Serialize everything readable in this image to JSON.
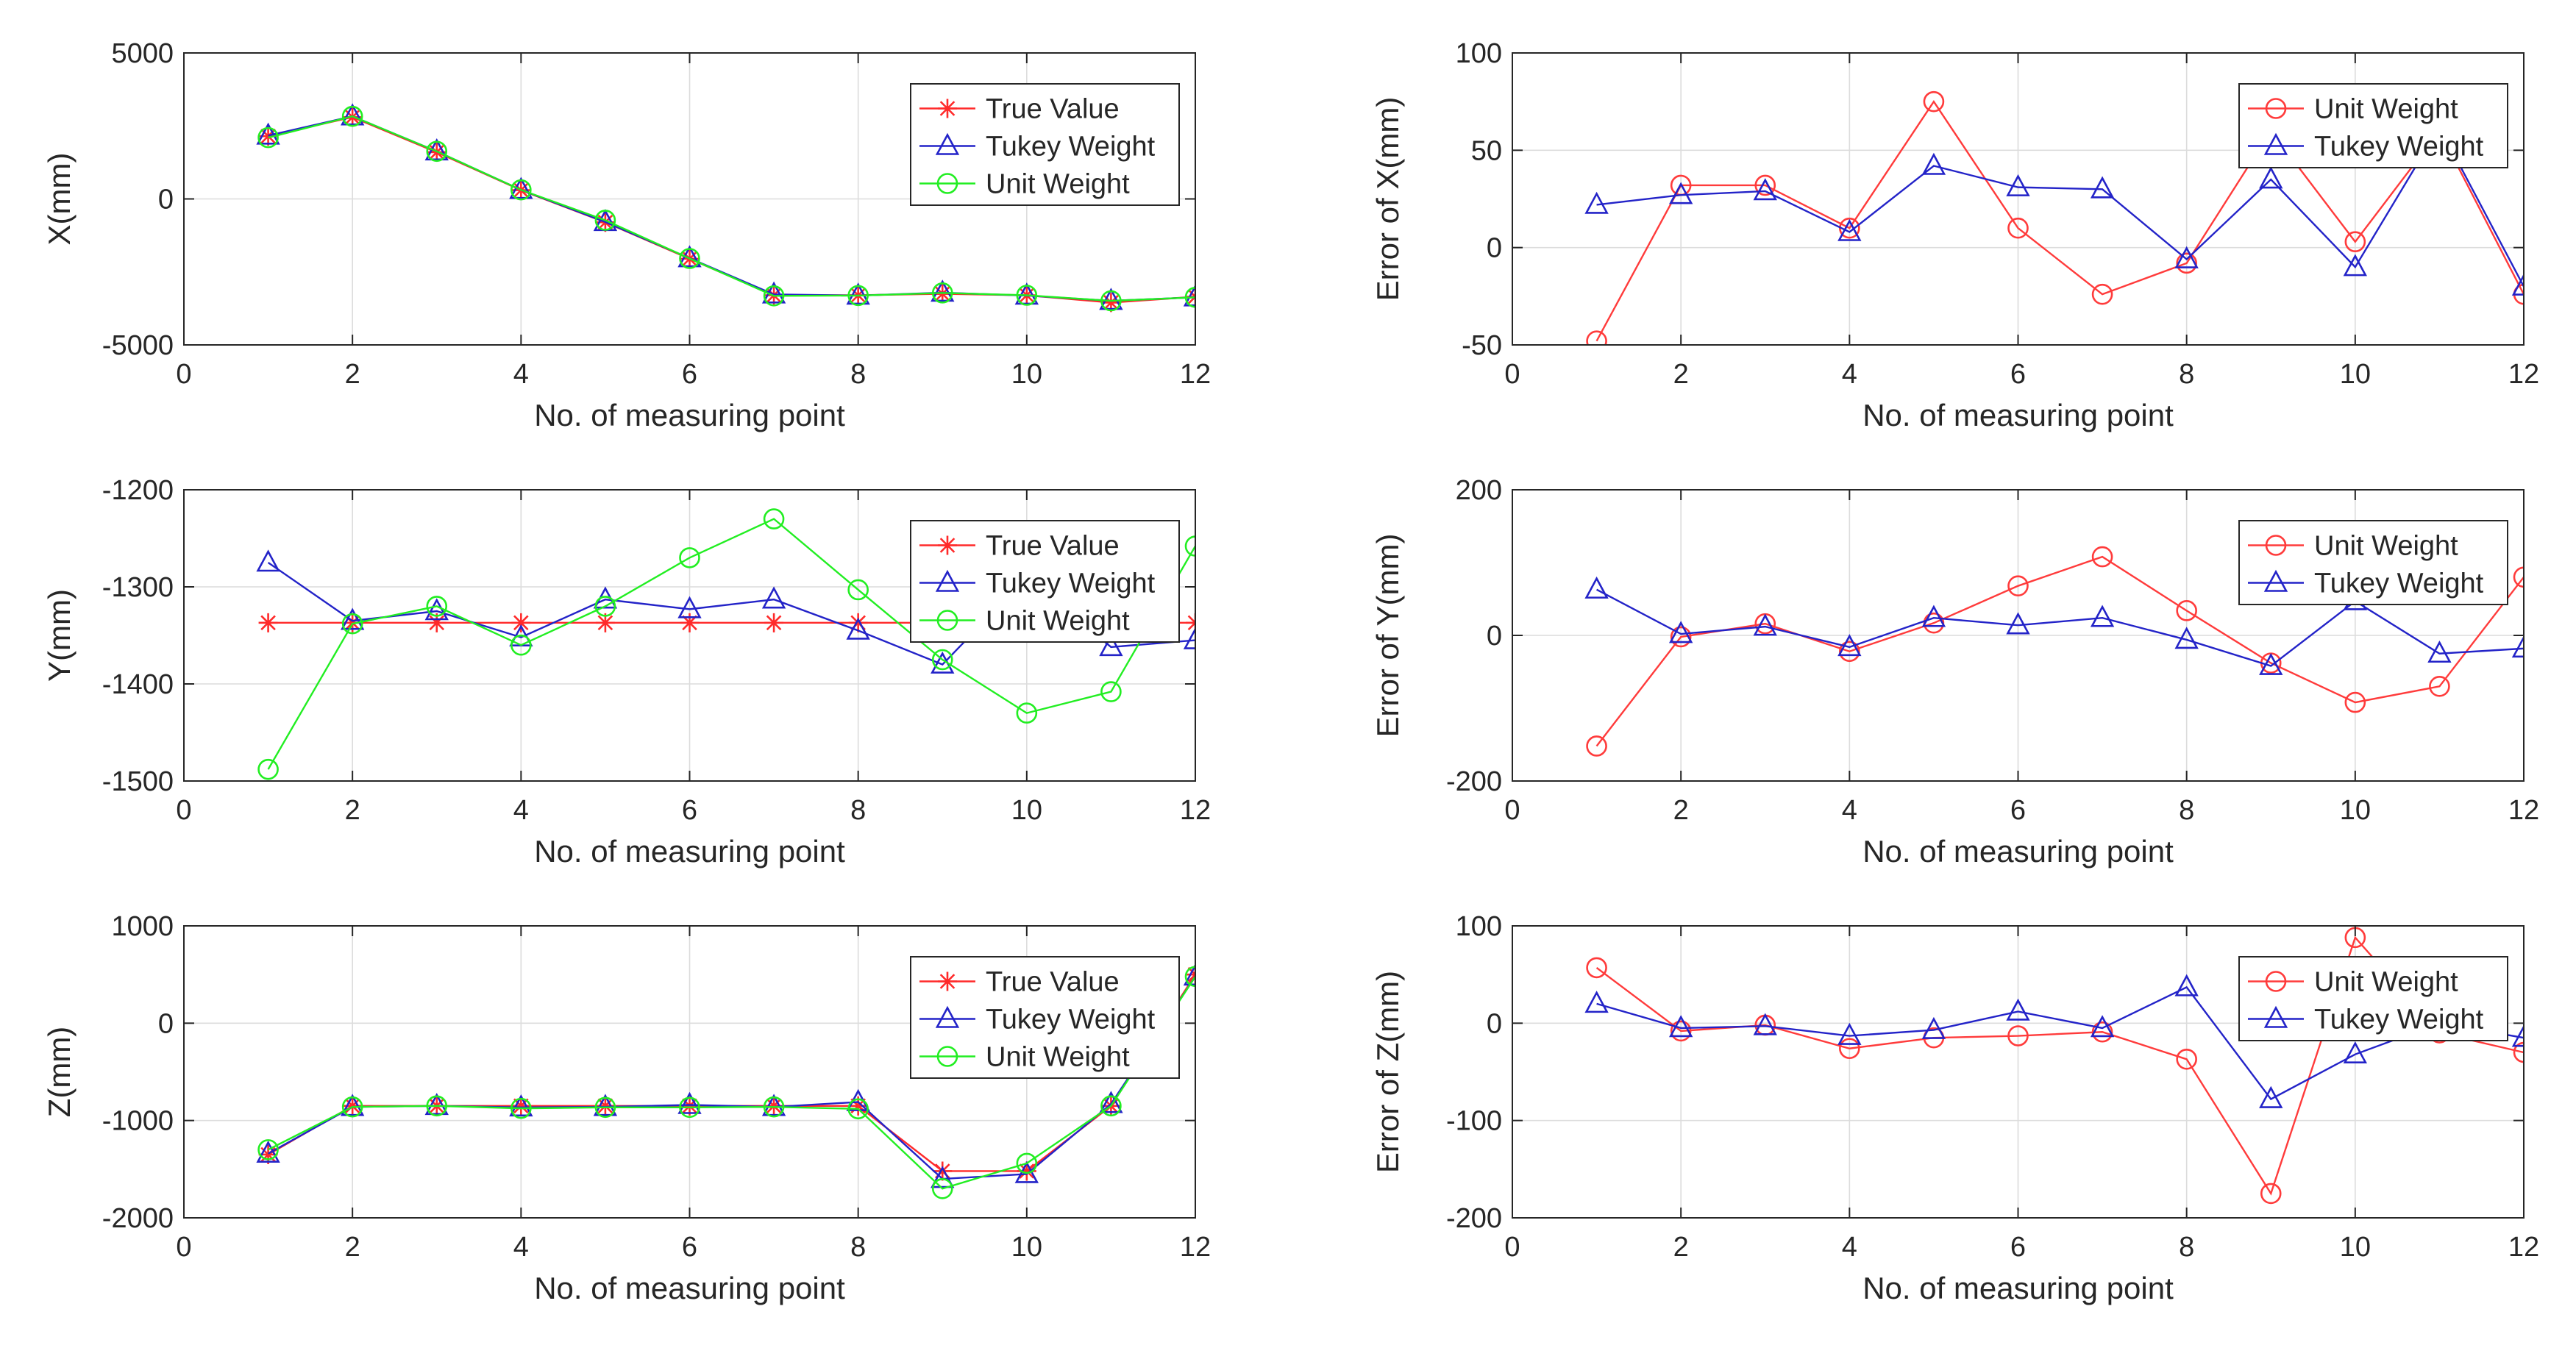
{
  "figure": {
    "background": "#ffffff",
    "axis_color": "#262626",
    "grid_color": "#dcdcdc"
  },
  "series_styles": {
    "True Value": {
      "color": "#ff2a2a",
      "marker": "star"
    },
    "Tukey Weight": {
      "color": "#2323c8",
      "marker": "triangle"
    },
    "Unit Weight": {
      "color": "#22ee22",
      "marker": "circle"
    },
    "Unit Weight (error)": {
      "color": "#ff3b3b",
      "marker": "circle"
    }
  },
  "chart_data": [
    {
      "type": "line",
      "id": "x-coordinate",
      "title": "",
      "xlabel": "No. of measuring point",
      "ylabel": "X(mm)",
      "xlim": [
        0,
        12
      ],
      "ylim": [
        -5000,
        5000
      ],
      "xticks": [
        0,
        2,
        4,
        6,
        8,
        10,
        12
      ],
      "yticks": [
        -5000,
        0,
        5000
      ],
      "grid": true,
      "legend": "top-right",
      "x": [
        1,
        2,
        3,
        4,
        5,
        6,
        7,
        8,
        9,
        10,
        11,
        12
      ],
      "series": [
        {
          "name": "True Value",
          "style": "True Value",
          "values": [
            2150,
            2800,
            1600,
            300,
            -800,
            -2050,
            -3300,
            -3300,
            -3250,
            -3300,
            -3550,
            -3350
          ]
        },
        {
          "name": "Tukey Weight",
          "style": "Tukey Weight",
          "values": [
            2170,
            2830,
            1630,
            310,
            -790,
            -2030,
            -3270,
            -3310,
            -3210,
            -3310,
            -3490,
            -3370
          ]
        },
        {
          "name": "Unit Weight",
          "style": "Unit Weight",
          "values": [
            2100,
            2830,
            1630,
            310,
            -730,
            -2040,
            -3320,
            -3310,
            -3220,
            -3300,
            -3490,
            -3370
          ]
        }
      ]
    },
    {
      "type": "line",
      "id": "x-error",
      "title": "",
      "xlabel": "No. of measuring point",
      "ylabel": "Error of X(mm)",
      "xlim": [
        0,
        12
      ],
      "ylim": [
        -50,
        100
      ],
      "xticks": [
        0,
        2,
        4,
        6,
        8,
        10,
        12
      ],
      "yticks": [
        -50,
        0,
        50,
        100
      ],
      "grid": true,
      "legend": "top-right",
      "x": [
        1,
        2,
        3,
        4,
        5,
        6,
        7,
        8,
        9,
        10,
        11,
        12
      ],
      "series": [
        {
          "name": "Unit Weight",
          "style": "Unit Weight (error)",
          "values": [
            -48,
            32,
            32,
            10,
            75,
            10,
            -24,
            -8,
            60,
            3,
            60,
            -24
          ]
        },
        {
          "name": "Tukey Weight",
          "style": "Tukey Weight",
          "values": [
            22,
            27,
            29,
            8,
            42,
            31,
            30,
            -6,
            35,
            -10,
            62,
            -20
          ]
        }
      ]
    },
    {
      "type": "line",
      "id": "y-coordinate",
      "title": "",
      "xlabel": "No. of measuring point",
      "ylabel": "Y(mm)",
      "xlim": [
        0,
        12
      ],
      "ylim": [
        -1500,
        -1200
      ],
      "xticks": [
        0,
        2,
        4,
        6,
        8,
        10,
        12
      ],
      "yticks": [
        -1500,
        -1400,
        -1300,
        -1200
      ],
      "grid": true,
      "legend": "top-right",
      "x": [
        1,
        2,
        3,
        4,
        5,
        6,
        7,
        8,
        9,
        10,
        11,
        12
      ],
      "series": [
        {
          "name": "True Value",
          "style": "True Value",
          "values": [
            -1337,
            -1337,
            -1337,
            -1337,
            -1337,
            -1337,
            -1337,
            -1337,
            -1337,
            -1337,
            -1337,
            -1337
          ]
        },
        {
          "name": "Tukey Weight",
          "style": "Tukey Weight",
          "values": [
            -1275,
            -1335,
            -1325,
            -1352,
            -1313,
            -1323,
            -1313,
            -1345,
            -1380,
            -1290,
            -1362,
            -1355
          ]
        },
        {
          "name": "Unit Weight",
          "style": "Unit Weight",
          "values": [
            -1488,
            -1338,
            -1320,
            -1360,
            -1320,
            -1270,
            -1230,
            -1303,
            -1375,
            -1430,
            -1408,
            -1258
          ]
        }
      ]
    },
    {
      "type": "line",
      "id": "y-error",
      "title": "",
      "xlabel": "No. of measuring point",
      "ylabel": "Error of Y(mm)",
      "xlim": [
        0,
        12
      ],
      "ylim": [
        -200,
        200
      ],
      "xticks": [
        0,
        2,
        4,
        6,
        8,
        10,
        12
      ],
      "yticks": [
        -200,
        0,
        200
      ],
      "grid": true,
      "legend": "top-right",
      "x": [
        1,
        2,
        3,
        4,
        5,
        6,
        7,
        8,
        9,
        10,
        11,
        12
      ],
      "series": [
        {
          "name": "Unit Weight",
          "style": "Unit Weight (error)",
          "values": [
            -152,
            -2,
            16,
            -22,
            17,
            68,
            108,
            34,
            -38,
            -92,
            -70,
            80
          ]
        },
        {
          "name": "Tukey Weight",
          "style": "Tukey Weight",
          "values": [
            63,
            2,
            12,
            -16,
            24,
            14,
            24,
            -6,
            -42,
            47,
            -25,
            -18
          ]
        }
      ]
    },
    {
      "type": "line",
      "id": "z-coordinate",
      "title": "",
      "xlabel": "No. of measuring point",
      "ylabel": "Z(mm)",
      "xlim": [
        0,
        12
      ],
      "ylim": [
        -2000,
        1000
      ],
      "xticks": [
        0,
        2,
        4,
        6,
        8,
        10,
        12
      ],
      "yticks": [
        -2000,
        -1000,
        0,
        1000
      ],
      "grid": true,
      "legend": "top-right",
      "x": [
        1,
        2,
        3,
        4,
        5,
        6,
        7,
        8,
        9,
        10,
        11,
        12
      ],
      "series": [
        {
          "name": "True Value",
          "style": "True Value",
          "values": [
            -1350,
            -850,
            -850,
            -850,
            -850,
            -850,
            -850,
            -850,
            -1520,
            -1520,
            -850,
            500
          ]
        },
        {
          "name": "Tukey Weight",
          "style": "Tukey Weight",
          "values": [
            -1340,
            -860,
            -850,
            -865,
            -860,
            -840,
            -860,
            -810,
            -1600,
            -1550,
            -830,
            480
          ]
        },
        {
          "name": "Unit Weight",
          "style": "Unit Weight",
          "values": [
            -1300,
            -860,
            -850,
            -875,
            -865,
            -865,
            -860,
            -880,
            -1700,
            -1440,
            -850,
            480
          ]
        }
      ]
    },
    {
      "type": "line",
      "id": "z-error",
      "title": "",
      "xlabel": "No. of measuring point",
      "ylabel": "Error of Z(mm)",
      "xlim": [
        0,
        12
      ],
      "ylim": [
        -200,
        100
      ],
      "xticks": [
        0,
        2,
        4,
        6,
        8,
        10,
        12
      ],
      "yticks": [
        -200,
        -100,
        0,
        100
      ],
      "grid": true,
      "legend": "top-right",
      "x": [
        1,
        2,
        3,
        4,
        5,
        6,
        7,
        8,
        9,
        10,
        11,
        12
      ],
      "series": [
        {
          "name": "Unit Weight",
          "style": "Unit Weight (error)",
          "values": [
            57,
            -8,
            -2,
            -26,
            -15,
            -13,
            -9,
            -37,
            -175,
            88,
            -10,
            -30
          ]
        },
        {
          "name": "Tukey Weight",
          "style": "Tukey Weight",
          "values": [
            20,
            -5,
            -3,
            -13,
            -7,
            12,
            -5,
            37,
            -78,
            -32,
            0,
            -15
          ]
        }
      ]
    }
  ]
}
